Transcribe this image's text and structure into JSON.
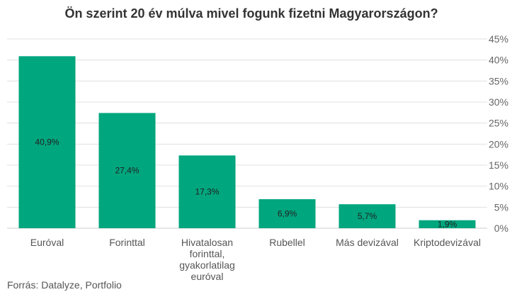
{
  "chart_data": {
    "type": "bar",
    "title": "Ön szerint 20 év múlva mivel fogunk fizetni Magyarországon?",
    "categories": [
      [
        "Euróval"
      ],
      [
        "Forinttal"
      ],
      [
        "Hivatalosan",
        "forinttal,",
        "gyakorlatilag",
        "euróval"
      ],
      [
        "Rubellel"
      ],
      [
        "Más devizával"
      ],
      [
        "Kriptodevizával"
      ]
    ],
    "values": [
      40.9,
      27.4,
      17.3,
      6.9,
      5.7,
      1.9
    ],
    "value_labels": [
      "40,9%",
      "27,4%",
      "17,3%",
      "6,9%",
      "5,7%",
      "1,9%"
    ],
    "ylim": [
      0,
      45
    ],
    "yticks": [
      0,
      5,
      10,
      15,
      20,
      25,
      30,
      35,
      40,
      45
    ],
    "ytick_labels": [
      "0%",
      "5%",
      "10%",
      "15%",
      "20%",
      "25%",
      "30%",
      "35%",
      "40%",
      "45%"
    ],
    "y_axis_side": "right",
    "grid": true,
    "xlabel": "",
    "ylabel": "",
    "bar_color": "#00a67e",
    "grid_color": "#e0e0e0",
    "source": "Forrás: Datalyze, Portfolio"
  }
}
